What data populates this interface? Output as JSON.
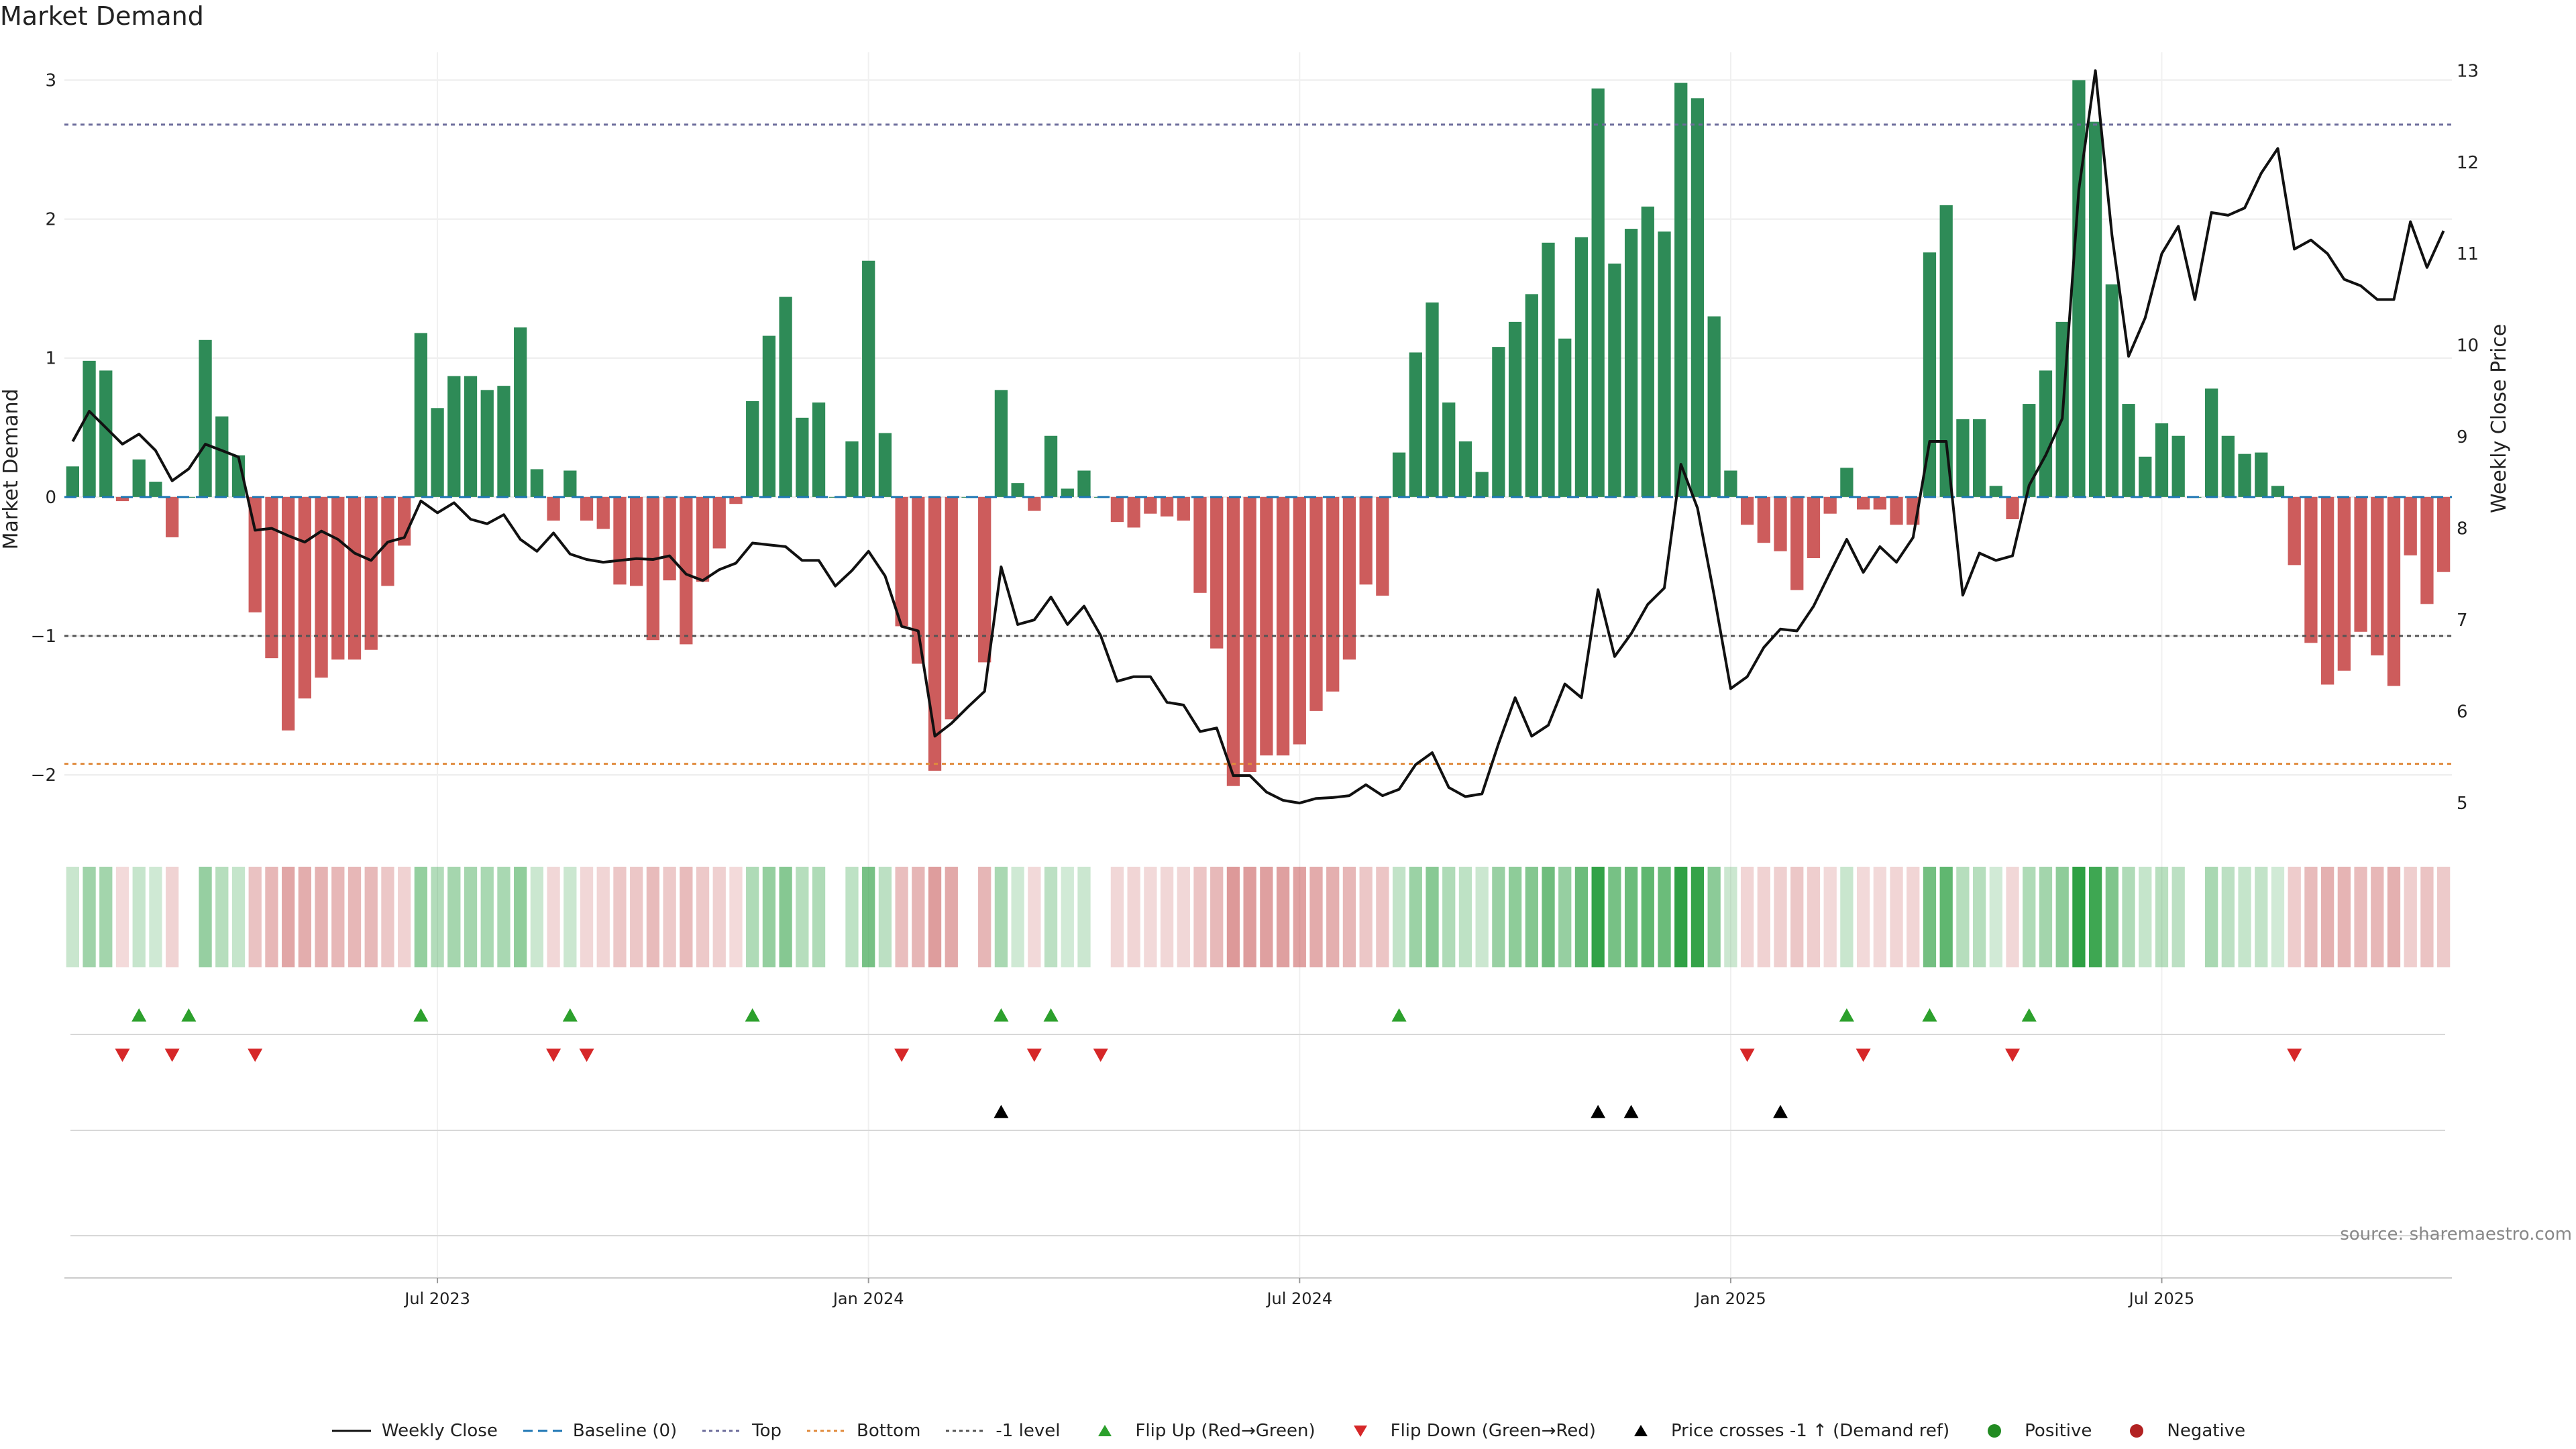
{
  "chart_data": {
    "type": "bar",
    "title": "Market Demand",
    "ylabel_left": "Market Demand",
    "ylabel_right": "Weekly Close Price",
    "source": "source: sharemaestro.com",
    "ylim_left": [
      -2.4,
      3.2
    ],
    "ylim_right": [
      4.7,
      13.2
    ],
    "yticks_left": [
      {
        "v": 3,
        "label": "3"
      },
      {
        "v": 2,
        "label": "2"
      },
      {
        "v": 1,
        "label": "1"
      },
      {
        "v": 0,
        "label": "0"
      },
      {
        "v": -1,
        "label": "−1"
      },
      {
        "v": -2,
        "label": "−2"
      }
    ],
    "yticks_right": [
      {
        "v": 13,
        "label": "13"
      },
      {
        "v": 12,
        "label": "12"
      },
      {
        "v": 11,
        "label": "11"
      },
      {
        "v": 10,
        "label": "10"
      },
      {
        "v": 9,
        "label": "9"
      },
      {
        "v": 8,
        "label": "8"
      },
      {
        "v": 7,
        "label": "7"
      },
      {
        "v": 6,
        "label": "6"
      },
      {
        "v": 5,
        "label": "5"
      }
    ],
    "xticks": [
      {
        "i": 22,
        "label": "Jul 2023"
      },
      {
        "i": 48,
        "label": "Jan 2024"
      },
      {
        "i": 74,
        "label": "Jul 2024"
      },
      {
        "i": 100,
        "label": "Jan 2025"
      },
      {
        "i": 126,
        "label": "Jul 2025"
      }
    ],
    "reference_lines": [
      {
        "name": "Top",
        "value": 2.68,
        "color": "#6b6b9a"
      },
      {
        "name": "-1 level",
        "value": -1.0,
        "color": "#555555"
      },
      {
        "name": "Bottom",
        "value": -1.92,
        "color": "#e08a3c"
      },
      {
        "name": "Baseline (0)",
        "value": 0,
        "color": "#1f77b4"
      }
    ],
    "demand": [
      0.22,
      0.98,
      0.91,
      -0.03,
      0.27,
      0.11,
      -0.29,
      0.0,
      1.13,
      0.58,
      0.3,
      -0.83,
      -1.16,
      -1.68,
      -1.45,
      -1.3,
      -1.17,
      -1.17,
      -1.1,
      -0.64,
      -0.35,
      1.18,
      0.64,
      0.87,
      0.87,
      0.77,
      0.8,
      1.22,
      0.2,
      -0.17,
      0.19,
      -0.17,
      -0.23,
      -0.63,
      -0.64,
      -1.03,
      -0.6,
      -1.06,
      -0.61,
      -0.37,
      -0.05,
      0.69,
      1.16,
      1.44,
      0.57,
      0.68,
      0.0,
      0.4,
      1.7,
      0.46,
      -0.93,
      -1.2,
      -1.97,
      -1.6,
      0.0,
      -1.19,
      0.77,
      0.1,
      -0.1,
      0.44,
      0.06,
      0.19,
      0.0,
      -0.18,
      -0.22,
      -0.12,
      -0.14,
      -0.17,
      -0.69,
      -1.09,
      -2.08,
      -1.98,
      -1.86,
      -1.86,
      -1.78,
      -1.54,
      -1.4,
      -1.17,
      -0.63,
      -0.71,
      0.32,
      1.04,
      1.4,
      0.68,
      0.4,
      0.18,
      1.08,
      1.26,
      1.46,
      1.83,
      1.14,
      1.87,
      2.94,
      1.68,
      1.93,
      2.09,
      1.91,
      2.98,
      2.87,
      1.3,
      0.19,
      -0.2,
      -0.33,
      -0.39,
      -0.67,
      -0.44,
      -0.12,
      0.21,
      -0.09,
      -0.09,
      -0.2,
      -0.2,
      1.76,
      2.1,
      0.56,
      0.56,
      0.08,
      -0.16,
      0.67,
      0.91,
      1.26,
      3.0,
      2.7,
      1.53,
      0.67,
      0.29,
      0.53,
      0.44,
      0.0,
      0.78,
      0.44,
      0.31,
      0.32,
      0.08,
      -0.49,
      -1.05,
      -1.35,
      -1.25,
      -0.97,
      -1.14,
      -1.36,
      -0.42,
      -0.77,
      -0.54
    ],
    "weekly_close": [
      8.95,
      9.28,
      9.1,
      8.92,
      9.03,
      8.85,
      8.52,
      8.65,
      8.92,
      8.85,
      8.78,
      7.98,
      8.0,
      7.92,
      7.85,
      7.97,
      7.88,
      7.73,
      7.65,
      7.85,
      7.9,
      8.3,
      8.17,
      8.28,
      8.1,
      8.05,
      8.15,
      7.88,
      7.75,
      7.95,
      7.72,
      7.66,
      7.63,
      7.65,
      7.67,
      7.66,
      7.7,
      7.5,
      7.43,
      7.55,
      7.62,
      7.84,
      7.82,
      7.8,
      7.65,
      7.65,
      7.37,
      7.54,
      7.75,
      7.48,
      6.93,
      6.88,
      5.73,
      5.87,
      6.05,
      6.22,
      7.58,
      6.95,
      7.0,
      7.25,
      6.95,
      7.15,
      6.83,
      6.33,
      6.38,
      6.38,
      6.1,
      6.07,
      5.78,
      5.82,
      5.3,
      5.3,
      5.12,
      5.03,
      5.0,
      5.05,
      5.06,
      5.08,
      5.2,
      5.08,
      5.15,
      5.42,
      5.55,
      5.17,
      5.07,
      5.1,
      5.65,
      6.15,
      5.73,
      5.85,
      6.3,
      6.15,
      7.33,
      6.6,
      6.85,
      7.17,
      7.35,
      8.7,
      8.22,
      7.27,
      6.25,
      6.38,
      6.7,
      6.9,
      6.88,
      7.15,
      7.52,
      7.88,
      7.52,
      7.8,
      7.63,
      7.9,
      8.95,
      8.95,
      7.27,
      7.73,
      7.65,
      7.7,
      8.47,
      8.8,
      9.2,
      11.7,
      13.0,
      11.2,
      9.88,
      10.3,
      11.0,
      11.3,
      10.5,
      11.45,
      11.42,
      11.5,
      11.88,
      12.15,
      11.05,
      11.15,
      11.0,
      10.72,
      10.65,
      10.5,
      10.5,
      11.35,
      10.85,
      11.25
    ],
    "flip_up_idx": [
      4,
      7,
      21,
      30,
      41,
      56,
      59,
      80,
      107,
      112,
      118
    ],
    "flip_down_idx": [
      3,
      6,
      11,
      29,
      31,
      50,
      58,
      62,
      101,
      108,
      117,
      134
    ],
    "price_cross_idx": [
      56,
      92,
      94,
      103
    ],
    "colors": {
      "positive_bar": "#2e8b57",
      "negative_bar": "#cd5c5c",
      "line": "#111111",
      "flip_up": "#2ca02c",
      "flip_down": "#d62728",
      "price_cross": "#000000",
      "positive_dot": "#228b22",
      "negative_dot": "#b22222"
    },
    "legend": [
      {
        "label": "Weekly Close",
        "key": "line-solid",
        "color": "#111111"
      },
      {
        "label": "Baseline (0)",
        "key": "line-dashed",
        "color": "#1f77b4"
      },
      {
        "label": "Top",
        "key": "line-dotted",
        "color": "#6b6b9a"
      },
      {
        "label": "Bottom",
        "key": "line-dotted",
        "color": "#e08a3c"
      },
      {
        "label": "-1 level",
        "key": "line-dotted",
        "color": "#555555"
      },
      {
        "label": "Flip Up (Red→Green)",
        "key": "tri-up",
        "color": "#2ca02c"
      },
      {
        "label": "Flip Down (Green→Red)",
        "key": "tri-down",
        "color": "#d62728"
      },
      {
        "label": "Price crosses -1 ↑ (Demand ref)",
        "key": "tri-up",
        "color": "#000000"
      },
      {
        "label": "Positive",
        "key": "dot",
        "color": "#228b22"
      },
      {
        "label": "Negative",
        "key": "dot",
        "color": "#b22222"
      }
    ]
  }
}
